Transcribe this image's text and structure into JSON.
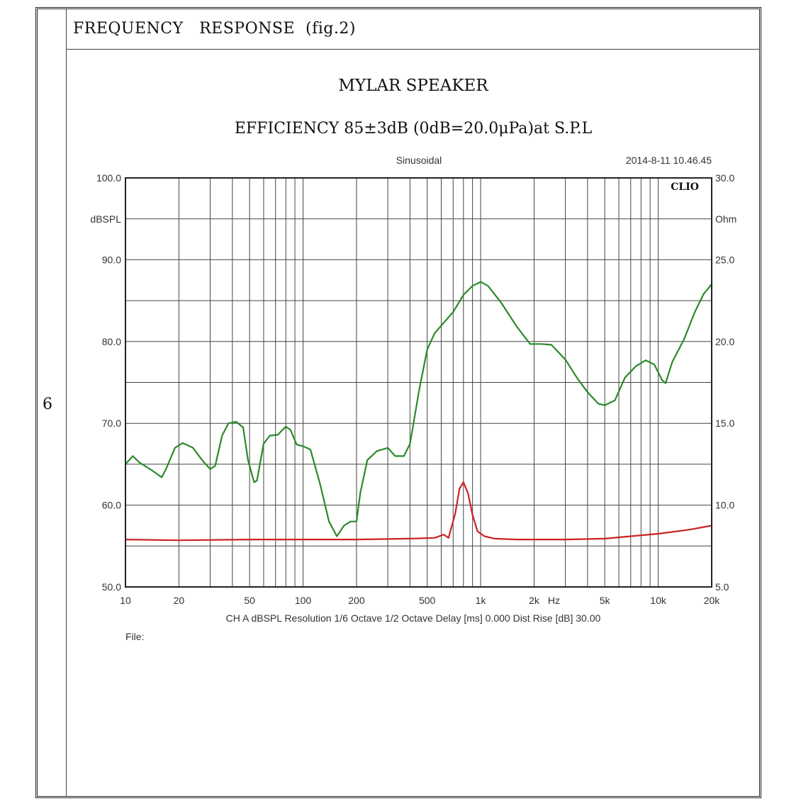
{
  "header": {
    "title": "FREQUENCY   RESPONSE  (fig.2)"
  },
  "page_number": "6",
  "chart_data": {
    "type": "line",
    "title": "MYLAR SPEAKER",
    "subtitle": "EFFICIENCY 85±3dB (0dB=20.0μPa)at S.P.L",
    "mode": "Sinusoidal",
    "timestamp": "2014-8-11 10.46.45",
    "brand": "CLIO",
    "x_scale": "log",
    "xlim": [
      10,
      20000
    ],
    "x_tick_labels": [
      "10",
      "20",
      "50",
      "100",
      "200",
      "500",
      "1k",
      "2k",
      "Hz",
      "5k",
      "10k",
      "20k"
    ],
    "ylabel_left": "dBSPL",
    "ylim_left": [
      50,
      100
    ],
    "y_tick_labels_left": [
      "100.0",
      "90.0",
      "80.0",
      "70.0",
      "60.0",
      "50.0"
    ],
    "ylabel_right": "Ohm",
    "ylim_right": [
      5,
      30
    ],
    "y_tick_labels_right": [
      "30.0",
      "25.0",
      "20.0",
      "15.0",
      "10.0",
      "5.0"
    ],
    "footer_info": "CH A   dBSPL   Resolution 1/6 Octave    1/2 Octave    Delay [ms] 0.000    Dist Rise [dB] 30.00",
    "file_label": "File:",
    "grid": true,
    "series": [
      {
        "axis": "left",
        "color": "#2a8a2a",
        "points": [
          [
            10,
            65.0
          ],
          [
            11,
            66.0
          ],
          [
            12,
            65.2
          ],
          [
            14,
            64.3
          ],
          [
            16,
            63.4
          ],
          [
            17,
            64.5
          ],
          [
            19,
            67.0
          ],
          [
            21,
            67.6
          ],
          [
            24,
            67.0
          ],
          [
            27,
            65.5
          ],
          [
            30,
            64.4
          ],
          [
            32,
            64.8
          ],
          [
            35,
            68.5
          ],
          [
            38,
            70.0
          ],
          [
            42,
            70.2
          ],
          [
            46,
            69.5
          ],
          [
            49,
            65.5
          ],
          [
            53,
            62.8
          ],
          [
            55,
            63.0
          ],
          [
            60,
            67.5
          ],
          [
            65,
            68.5
          ],
          [
            72,
            68.6
          ],
          [
            80,
            69.6
          ],
          [
            85,
            69.2
          ],
          [
            92,
            67.4
          ],
          [
            100,
            67.2
          ],
          [
            110,
            66.8
          ],
          [
            125,
            62.5
          ],
          [
            140,
            58.0
          ],
          [
            155,
            56.2
          ],
          [
            170,
            57.5
          ],
          [
            185,
            58.0
          ],
          [
            200,
            58.0
          ],
          [
            210,
            61.5
          ],
          [
            230,
            65.5
          ],
          [
            260,
            66.6
          ],
          [
            300,
            67.0
          ],
          [
            330,
            66.0
          ],
          [
            370,
            66.0
          ],
          [
            400,
            67.5
          ],
          [
            450,
            74.0
          ],
          [
            500,
            79.0
          ],
          [
            550,
            81.0
          ],
          [
            620,
            82.3
          ],
          [
            700,
            83.6
          ],
          [
            800,
            85.7
          ],
          [
            900,
            86.8
          ],
          [
            1000,
            87.3
          ],
          [
            1100,
            86.8
          ],
          [
            1300,
            84.8
          ],
          [
            1600,
            81.8
          ],
          [
            1900,
            79.7
          ],
          [
            2200,
            79.7
          ],
          [
            2500,
            79.6
          ],
          [
            3000,
            77.8
          ],
          [
            3500,
            75.5
          ],
          [
            4000,
            73.8
          ],
          [
            4600,
            72.4
          ],
          [
            5000,
            72.2
          ],
          [
            5700,
            72.8
          ],
          [
            6500,
            75.6
          ],
          [
            7500,
            77.0
          ],
          [
            8500,
            77.7
          ],
          [
            9500,
            77.2
          ],
          [
            10500,
            75.3
          ],
          [
            11000,
            74.9
          ],
          [
            12000,
            77.5
          ],
          [
            14000,
            80.3
          ],
          [
            16000,
            83.5
          ],
          [
            18000,
            85.8
          ],
          [
            20000,
            87.0
          ]
        ]
      },
      {
        "axis": "right",
        "color": "#cc2222",
        "points": [
          [
            10,
            7.9
          ],
          [
            20,
            7.85
          ],
          [
            50,
            7.9
          ],
          [
            100,
            7.9
          ],
          [
            200,
            7.9
          ],
          [
            400,
            7.95
          ],
          [
            550,
            8.0
          ],
          [
            620,
            8.2
          ],
          [
            660,
            8.0
          ],
          [
            720,
            9.5
          ],
          [
            760,
            11.0
          ],
          [
            800,
            11.4
          ],
          [
            850,
            10.7
          ],
          [
            900,
            9.4
          ],
          [
            960,
            8.4
          ],
          [
            1050,
            8.1
          ],
          [
            1200,
            7.95
          ],
          [
            1600,
            7.9
          ],
          [
            2000,
            7.9
          ],
          [
            3000,
            7.9
          ],
          [
            5000,
            7.95
          ],
          [
            7000,
            8.1
          ],
          [
            10000,
            8.25
          ],
          [
            15000,
            8.5
          ],
          [
            20000,
            8.75
          ]
        ]
      }
    ]
  }
}
